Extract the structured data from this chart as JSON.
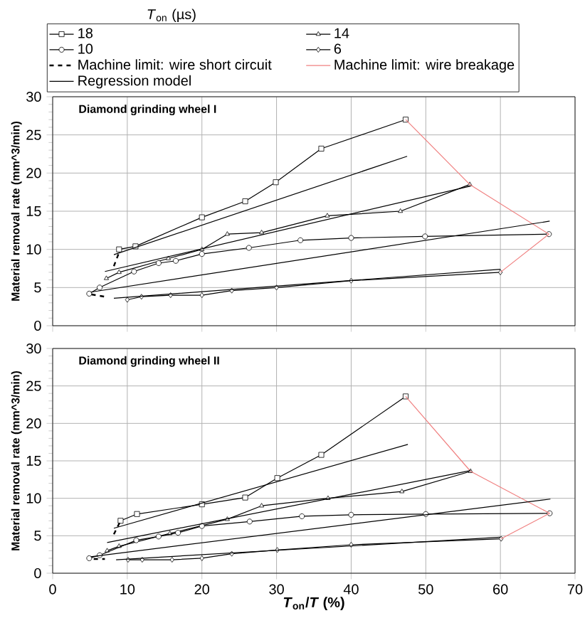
{
  "chart_data": [
    {
      "type": "line",
      "title": "Diamond grinding wheel I",
      "ylabel": "Material removal rate (mm^3/min)",
      "legend_title": "*T*$_{on}$ (µs)",
      "legend": "top",
      "grid": true,
      "tick_labels": "y",
      "xlim": [
        0,
        70
      ],
      "xticks": [
        0,
        10,
        20,
        30,
        40,
        50,
        60,
        70
      ],
      "ylim": [
        0,
        30
      ],
      "yticks": [
        0,
        5,
        10,
        15,
        20,
        25,
        30
      ],
      "series": [
        {
          "name": "18",
          "color": "#000000",
          "marker": "square",
          "x": [
            8.9,
            11.1,
            20,
            25.8,
            29.9,
            36,
            47.3
          ],
          "values": [
            10.0,
            10.4,
            14.2,
            16.3,
            18.8,
            23.2,
            27.0
          ]
        },
        {
          "name": "14",
          "color": "#000000",
          "marker": "triangle",
          "x": [
            7.2,
            8.9,
            15.5,
            20,
            23.4,
            28.0,
            36.8,
            46.6,
            55.9
          ],
          "values": [
            6.2,
            7.0,
            8.8,
            10.0,
            12.0,
            12.2,
            14.4,
            15.0,
            18.5
          ]
        },
        {
          "name": "10",
          "color": "#000000",
          "marker": "circle",
          "x": [
            4.9,
            6.3,
            10.9,
            14.2,
            16.5,
            20,
            26.3,
            33.2,
            40,
            49.9,
            66.5
          ],
          "values": [
            4.2,
            5.0,
            7.1,
            8.2,
            8.5,
            9.4,
            10.2,
            11.2,
            11.5,
            11.7,
            12.0
          ]
        },
        {
          "name": "6",
          "color": "#000000",
          "marker": "diamond",
          "x": [
            10,
            11.9,
            15.8,
            20,
            24,
            30,
            40,
            60
          ],
          "values": [
            3.4,
            3.8,
            4.0,
            4.0,
            4.6,
            5.0,
            5.9,
            7.0
          ]
        },
        {
          "name": "Machine limit: wire short circuit",
          "color": "#000000",
          "line_style": "dashed",
          "x": [
            8.2,
            8.9,
            null,
            5.2,
            7.0
          ],
          "values": [
            7.8,
            9.6,
            null,
            4.1,
            3.8
          ]
        },
        {
          "name": "Machine limit: wire breakage",
          "color": "#f08080",
          "x": [
            47.3,
            55.9,
            66.5,
            60
          ],
          "values": [
            27.0,
            18.5,
            12.0,
            7.0
          ]
        },
        {
          "name": "Regression model",
          "color": "#000000",
          "x": [
            8.2,
            47.5,
            null,
            7.0,
            56,
            null,
            5.1,
            66.6,
            null,
            8.2,
            60
          ],
          "values": [
            9.3,
            22.2,
            null,
            7.1,
            18.3,
            null,
            4.4,
            13.7,
            null,
            3.6,
            7.4
          ]
        }
      ]
    },
    {
      "type": "line",
      "title": "Diamond grinding wheel II",
      "ylabel": "Material removal rate (mm^3/min)",
      "xlabel": "*T*$_{on}$/*T* (%)",
      "grid": true,
      "xlim": [
        0,
        70
      ],
      "xticks": [
        0,
        10,
        20,
        30,
        40,
        50,
        60,
        70
      ],
      "ylim": [
        0,
        30
      ],
      "yticks": [
        0,
        5,
        10,
        15,
        20,
        25,
        30
      ],
      "series": [
        {
          "color": "#000000",
          "marker": "square",
          "x": [
            9.1,
            11.3,
            20,
            25.8,
            30.1,
            36.0,
            47.3
          ],
          "values": [
            7.0,
            7.9,
            9.2,
            10.1,
            12.7,
            15.8,
            23.6
          ]
        },
        {
          "color": "#000000",
          "marker": "triangle",
          "x": [
            7.3,
            8.9,
            15.7,
            23.4,
            28.0,
            36.9,
            46.8,
            56.0
          ],
          "values": [
            3.0,
            3.6,
            5.3,
            7.2,
            9.0,
            10.0,
            10.9,
            13.6
          ]
        },
        {
          "color": "#000000",
          "marker": "circle",
          "x": [
            4.9,
            6.3,
            11.2,
            14.2,
            16.8,
            20,
            26.4,
            33.4,
            40,
            50,
            66.6
          ],
          "values": [
            2.0,
            2.4,
            4.4,
            4.9,
            5.4,
            6.3,
            6.9,
            7.6,
            7.8,
            7.9,
            8.0
          ]
        },
        {
          "color": "#000000",
          "marker": "diamond",
          "x": [
            10.1,
            12,
            16,
            20,
            24,
            30.1,
            40,
            60.1
          ],
          "values": [
            1.8,
            1.8,
            1.8,
            2.0,
            2.6,
            3.1,
            3.8,
            4.6
          ]
        },
        {
          "color": "#000000",
          "line_style": "dashed",
          "x": [
            8.2,
            9.1,
            null,
            5.5,
            7.0
          ],
          "values": [
            5.2,
            7.0,
            null,
            1.9,
            1.9
          ]
        },
        {
          "color": "#f08080",
          "x": [
            47.3,
            56.0,
            66.6,
            60.1
          ],
          "values": [
            23.6,
            13.6,
            8.0,
            4.6
          ]
        },
        {
          "color": "#000000",
          "x": [
            8.2,
            47.6,
            null,
            7.3,
            56,
            null,
            5.1,
            66.7,
            null,
            8.5,
            60
          ],
          "values": [
            6.0,
            17.2,
            null,
            4.1,
            13.7,
            null,
            2.2,
            9.9,
            null,
            1.8,
            4.8
          ]
        }
      ]
    }
  ]
}
